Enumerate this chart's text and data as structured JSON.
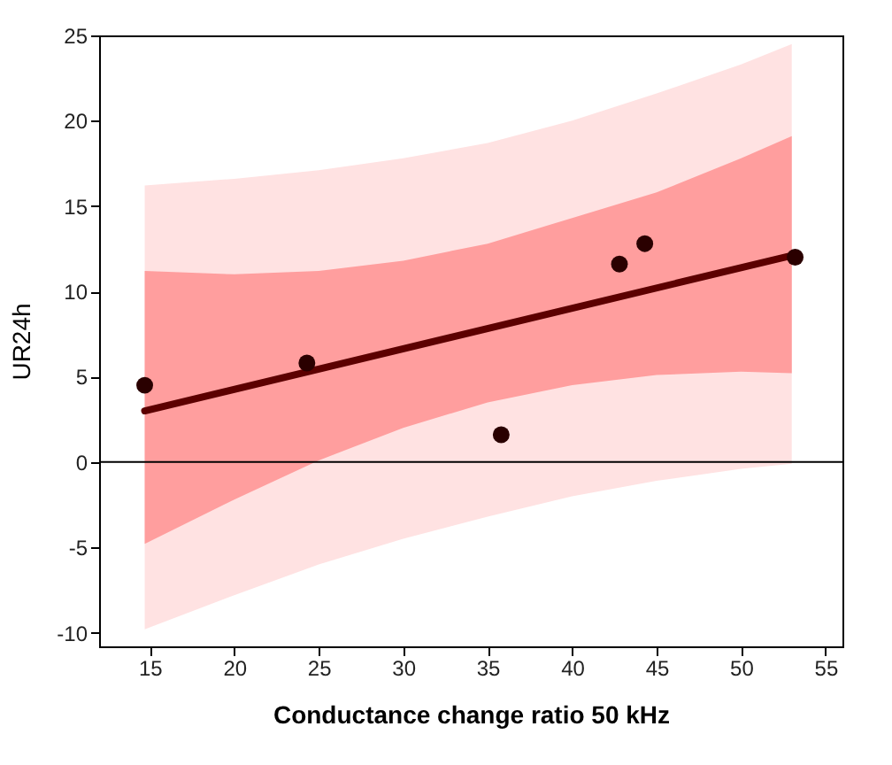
{
  "chart_data": {
    "type": "scatter",
    "xlabel": "Conductance change ratio 50 kHz",
    "ylabel": "UR24h",
    "xlim": [
      12,
      56
    ],
    "ylim": [
      -10.8,
      25
    ],
    "xticks": [
      15,
      20,
      25,
      30,
      35,
      40,
      45,
      50,
      55
    ],
    "yticks": [
      -10,
      -5,
      0,
      5,
      10,
      15,
      20,
      25
    ],
    "grid": false,
    "ref_lines": [
      {
        "axis": "y",
        "value": 0,
        "color": "#000000"
      }
    ],
    "series": [
      {
        "type": "line",
        "color": "#ffe2e2",
        "x": [
          14.7,
          20,
          25,
          30,
          35,
          40,
          45,
          50,
          53
        ],
        "values": [
          null,
          null,
          null,
          null,
          null,
          null,
          null,
          null,
          null
        ],
        "lower": [
          -9.8,
          -7.8,
          -6.0,
          -4.5,
          -3.2,
          -2.0,
          -1.1,
          -0.4,
          -0.1
        ],
        "upper": [
          16.2,
          16.6,
          17.1,
          17.8,
          18.7,
          20.0,
          21.6,
          23.3,
          24.5
        ]
      },
      {
        "type": "line",
        "color": "#ff9e9e",
        "x": [
          14.7,
          20,
          25,
          30,
          35,
          40,
          45,
          50,
          53
        ],
        "values": [
          null,
          null,
          null,
          null,
          null,
          null,
          null,
          null,
          null
        ],
        "lower": [
          -4.8,
          -2.2,
          0.1,
          2.0,
          3.5,
          4.5,
          5.1,
          5.3,
          5.2
        ],
        "upper": [
          11.2,
          11.0,
          11.2,
          11.8,
          12.8,
          14.3,
          15.8,
          17.8,
          19.1
        ]
      },
      {
        "type": "line",
        "color": "#5c0000",
        "line_style": "solid",
        "x": [
          14.7,
          53
        ],
        "values": [
          3.0,
          12.1
        ]
      },
      {
        "marker": "circle",
        "color": "#2a0000",
        "x": [
          14.7,
          24.3,
          35.8,
          42.8,
          44.3,
          53.2
        ],
        "values": [
          4.5,
          5.8,
          1.6,
          11.6,
          12.8,
          12.0
        ]
      }
    ]
  }
}
